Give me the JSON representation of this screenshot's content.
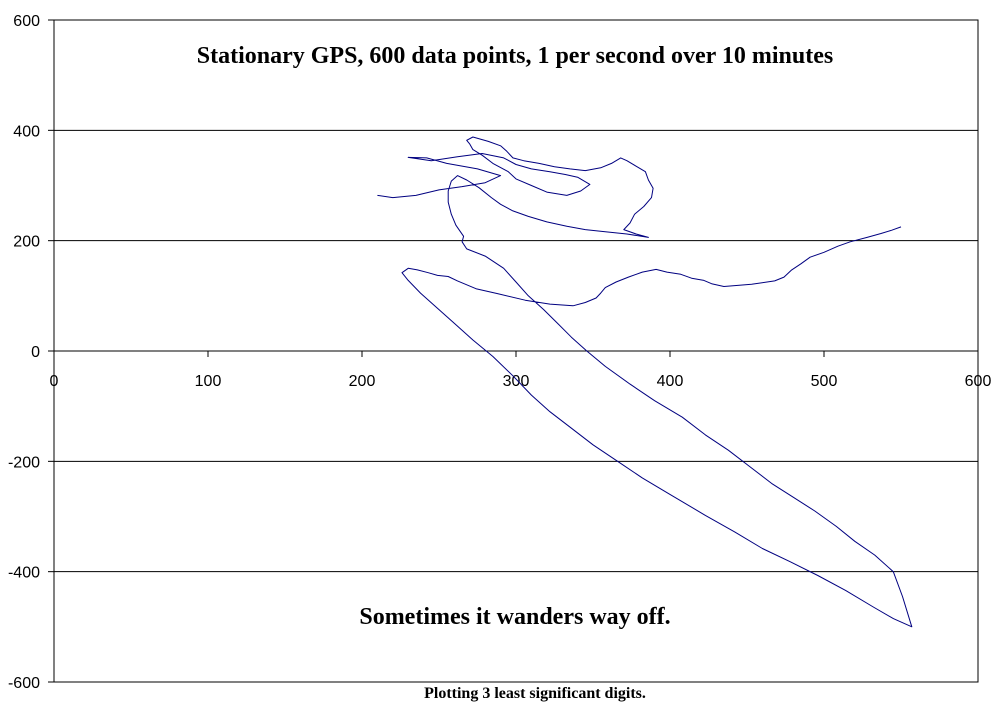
{
  "chart_data": {
    "type": "line",
    "title": "Stationary GPS, 600 data points, 1 per second over 10 minutes",
    "annotation": "Sometimes it wanders way off.",
    "caption": "Plotting 3 least significant digits.",
    "xlim": [
      0,
      600
    ],
    "ylim": [
      -600,
      600
    ],
    "x_ticks": [
      0,
      100,
      200,
      300,
      400,
      500,
      600
    ],
    "y_ticks": [
      -600,
      -400,
      -200,
      0,
      200,
      400,
      600
    ],
    "grid": "horizontal",
    "line_color": "#000080",
    "series": [
      {
        "points": [
          [
            210,
            282
          ],
          [
            220,
            278
          ],
          [
            235,
            282
          ],
          [
            250,
            292
          ],
          [
            265,
            298
          ],
          [
            280,
            305
          ],
          [
            290,
            318
          ],
          [
            275,
            330
          ],
          [
            255,
            340
          ],
          [
            242,
            350
          ],
          [
            230,
            351
          ],
          [
            245,
            345
          ],
          [
            262,
            352
          ],
          [
            278,
            358
          ],
          [
            292,
            350
          ],
          [
            300,
            338
          ],
          [
            310,
            330
          ],
          [
            322,
            325
          ],
          [
            332,
            320
          ],
          [
            340,
            315
          ],
          [
            348,
            302
          ],
          [
            342,
            290
          ],
          [
            333,
            282
          ],
          [
            320,
            288
          ],
          [
            310,
            300
          ],
          [
            300,
            312
          ],
          [
            295,
            325
          ],
          [
            285,
            340
          ],
          [
            278,
            355
          ],
          [
            272,
            365
          ],
          [
            270,
            375
          ],
          [
            268,
            382
          ],
          [
            272,
            388
          ],
          [
            282,
            380
          ],
          [
            290,
            372
          ],
          [
            294,
            362
          ],
          [
            298,
            350
          ],
          [
            305,
            345
          ],
          [
            315,
            340
          ],
          [
            325,
            334
          ],
          [
            335,
            330
          ],
          [
            345,
            327
          ],
          [
            355,
            332
          ],
          [
            362,
            340
          ],
          [
            368,
            350
          ],
          [
            372,
            345
          ],
          [
            378,
            335
          ],
          [
            384,
            325
          ],
          [
            386,
            310
          ],
          [
            389,
            295
          ],
          [
            388,
            278
          ],
          [
            383,
            262
          ],
          [
            377,
            248
          ],
          [
            374,
            232
          ],
          [
            370,
            220
          ],
          [
            378,
            212
          ],
          [
            386,
            206
          ],
          [
            372,
            212
          ],
          [
            358,
            216
          ],
          [
            345,
            220
          ],
          [
            333,
            226
          ],
          [
            320,
            234
          ],
          [
            308,
            244
          ],
          [
            298,
            254
          ],
          [
            290,
            266
          ],
          [
            284,
            278
          ],
          [
            276,
            296
          ],
          [
            268,
            310
          ],
          [
            262,
            318
          ],
          [
            258,
            308
          ],
          [
            256,
            290
          ],
          [
            256,
            270
          ],
          [
            258,
            248
          ],
          [
            261,
            228
          ],
          [
            266,
            208
          ],
          [
            265,
            198
          ],
          [
            268,
            185
          ],
          [
            280,
            172
          ],
          [
            292,
            150
          ],
          [
            300,
            125
          ],
          [
            308,
            100
          ],
          [
            318,
            75
          ],
          [
            327,
            50
          ],
          [
            336,
            25
          ],
          [
            346,
            0
          ],
          [
            358,
            -28
          ],
          [
            374,
            -60
          ],
          [
            390,
            -90
          ],
          [
            408,
            -120
          ],
          [
            423,
            -152
          ],
          [
            438,
            -180
          ],
          [
            452,
            -210
          ],
          [
            466,
            -240
          ],
          [
            480,
            -265
          ],
          [
            494,
            -290
          ],
          [
            508,
            -318
          ],
          [
            520,
            -345
          ],
          [
            533,
            -370
          ],
          [
            545,
            -400
          ],
          [
            551,
            -445
          ],
          [
            557,
            -500
          ],
          [
            545,
            -485
          ],
          [
            532,
            -464
          ],
          [
            514,
            -434
          ],
          [
            496,
            -407
          ],
          [
            478,
            -382
          ],
          [
            460,
            -358
          ],
          [
            442,
            -328
          ],
          [
            423,
            -298
          ],
          [
            400,
            -260
          ],
          [
            382,
            -230
          ],
          [
            366,
            -200
          ],
          [
            350,
            -170
          ],
          [
            336,
            -140
          ],
          [
            322,
            -110
          ],
          [
            310,
            -80
          ],
          [
            298,
            -45
          ],
          [
            285,
            -10
          ],
          [
            272,
            20
          ],
          [
            260,
            50
          ],
          [
            248,
            80
          ],
          [
            238,
            105
          ],
          [
            230,
            128
          ],
          [
            226,
            142
          ],
          [
            230,
            150
          ],
          [
            236,
            147
          ],
          [
            243,
            142
          ],
          [
            249,
            137
          ],
          [
            256,
            135
          ],
          [
            262,
            127
          ],
          [
            274,
            113
          ],
          [
            288,
            104
          ],
          [
            306,
            92
          ],
          [
            322,
            85
          ],
          [
            337,
            82
          ],
          [
            345,
            88
          ],
          [
            352,
            96
          ],
          [
            355,
            105
          ],
          [
            358,
            115
          ],
          [
            365,
            125
          ],
          [
            373,
            134
          ],
          [
            382,
            143
          ],
          [
            391,
            148
          ],
          [
            398,
            143
          ],
          [
            407,
            139
          ],
          [
            414,
            132
          ],
          [
            422,
            128
          ],
          [
            427,
            122
          ],
          [
            435,
            117
          ],
          [
            444,
            119
          ],
          [
            453,
            121
          ],
          [
            468,
            127
          ],
          [
            474,
            134
          ],
          [
            479,
            147
          ],
          [
            485,
            158
          ],
          [
            491,
            170
          ],
          [
            500,
            179
          ],
          [
            509,
            190
          ],
          [
            517,
            198
          ],
          [
            528,
            206
          ],
          [
            537,
            213
          ],
          [
            544,
            219
          ],
          [
            550,
            225
          ]
        ]
      }
    ]
  }
}
